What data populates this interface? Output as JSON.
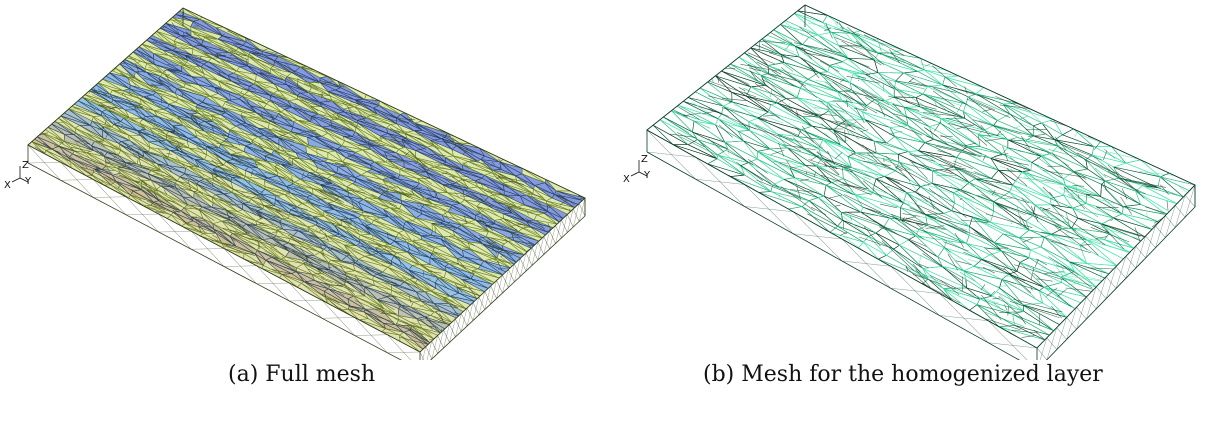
{
  "panels": [
    {
      "id": "a",
      "caption": "(a) Full mesh",
      "axes": {
        "x": "X",
        "y": "Y",
        "z": "Z"
      },
      "colors": {
        "edge": "#2f3d1a",
        "face_warm": "#b88a2a",
        "face_mid": "#9fbf1f",
        "face_cool": "#3a8fd8",
        "face_deep": "#2146c4",
        "outline": "#cfe03a"
      },
      "stripes": 11
    },
    {
      "id": "b",
      "caption": "(b) Mesh for the homogenized layer",
      "axes": {
        "x": "X",
        "y": "Y",
        "z": "Z"
      },
      "colors": {
        "edge": "#0b3b24",
        "face_light": "#3de3a8",
        "face_mid": "#14a66a"
      }
    }
  ]
}
